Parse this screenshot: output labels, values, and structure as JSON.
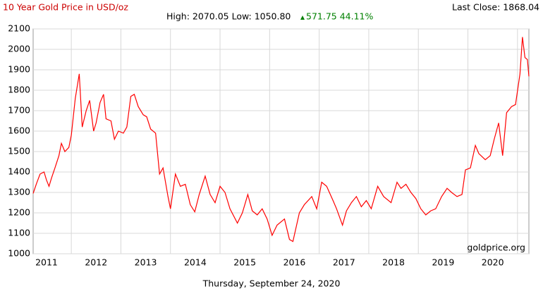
{
  "chart_data": {
    "type": "line",
    "title": "10 Year Gold Price in USD/oz",
    "stats": "High: 2070.05 Low: 1050.80",
    "change": "571.75 44.11%",
    "last_close": "Last Close: 1868.04",
    "source": "goldprice.org",
    "date": "Thursday, September 24, 2020",
    "color": "#ff0000",
    "grid": true,
    "xlim": [
      2010.73,
      2020.73
    ],
    "ylim": [
      1000,
      2100
    ],
    "xticks": [
      2011,
      2012,
      2013,
      2014,
      2015,
      2016,
      2017,
      2018,
      2019,
      2020
    ],
    "yticks": [
      1000,
      1100,
      1200,
      1300,
      1400,
      1500,
      1600,
      1700,
      1800,
      1900,
      2000,
      2100
    ],
    "x": [
      2010.73,
      2010.8,
      2010.87,
      2010.95,
      2011.0,
      2011.05,
      2011.1,
      2011.17,
      2011.25,
      2011.3,
      2011.37,
      2011.45,
      2011.5,
      2011.58,
      2011.66,
      2011.72,
      2011.8,
      2011.87,
      2011.95,
      2012.0,
      2012.08,
      2012.15,
      2012.2,
      2012.3,
      2012.37,
      2012.45,
      2012.55,
      2012.62,
      2012.7,
      2012.77,
      2012.85,
      2012.95,
      2013.02,
      2013.1,
      2013.2,
      2013.28,
      2013.35,
      2013.45,
      2013.5,
      2013.6,
      2013.7,
      2013.8,
      2013.9,
      2013.99,
      2014.08,
      2014.2,
      2014.3,
      2014.4,
      2014.5,
      2014.6,
      2014.7,
      2014.85,
      2014.95,
      2015.06,
      2015.15,
      2015.25,
      2015.35,
      2015.45,
      2015.55,
      2015.65,
      2015.8,
      2015.9,
      2015.97,
      2016.1,
      2016.2,
      2016.35,
      2016.45,
      2016.55,
      2016.65,
      2016.78,
      2016.85,
      2016.97,
      2017.05,
      2017.15,
      2017.25,
      2017.35,
      2017.45,
      2017.55,
      2017.68,
      2017.8,
      2017.95,
      2018.07,
      2018.15,
      2018.25,
      2018.35,
      2018.45,
      2018.55,
      2018.65,
      2018.75,
      2018.85,
      2018.97,
      2019.08,
      2019.17,
      2019.28,
      2019.38,
      2019.45,
      2019.55,
      2019.65,
      2019.72,
      2019.85,
      2019.95,
      2020.03,
      2020.12,
      2020.2,
      2020.28,
      2020.38,
      2020.46,
      2020.55,
      2020.6,
      2020.65,
      2020.7,
      2020.73
    ],
    "values": [
      1295,
      1345,
      1390,
      1400,
      1360,
      1330,
      1370,
      1420,
      1480,
      1540,
      1500,
      1520,
      1580,
      1760,
      1880,
      1620,
      1700,
      1750,
      1600,
      1640,
      1740,
      1780,
      1660,
      1650,
      1560,
      1600,
      1590,
      1620,
      1770,
      1780,
      1720,
      1680,
      1670,
      1610,
      1590,
      1390,
      1420,
      1280,
      1220,
      1390,
      1330,
      1340,
      1240,
      1205,
      1290,
      1380,
      1290,
      1250,
      1330,
      1300,
      1220,
      1150,
      1200,
      1290,
      1210,
      1190,
      1220,
      1170,
      1090,
      1140,
      1170,
      1070,
      1060,
      1200,
      1240,
      1280,
      1220,
      1350,
      1330,
      1260,
      1220,
      1140,
      1210,
      1250,
      1280,
      1230,
      1260,
      1220,
      1330,
      1280,
      1250,
      1350,
      1320,
      1340,
      1300,
      1270,
      1220,
      1190,
      1210,
      1220,
      1280,
      1320,
      1300,
      1280,
      1290,
      1410,
      1420,
      1530,
      1490,
      1460,
      1480,
      1560,
      1640,
      1480,
      1690,
      1720,
      1730,
      1880,
      2060,
      1960,
      1950,
      1868.04
    ]
  }
}
